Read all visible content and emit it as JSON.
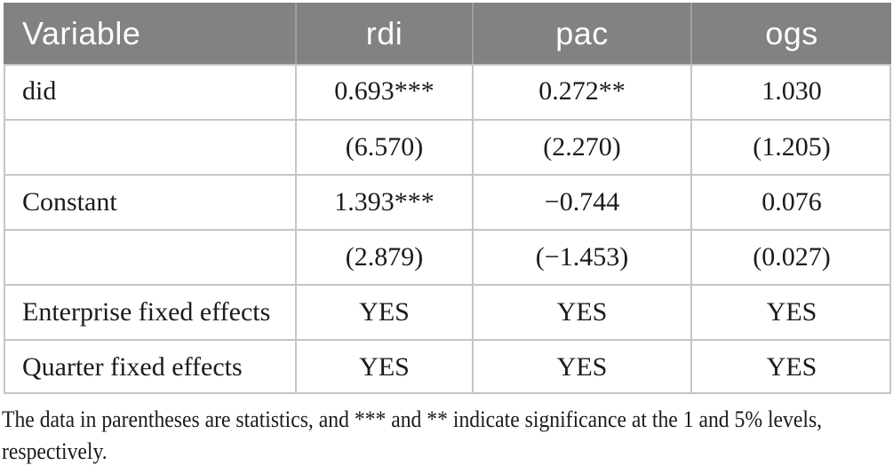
{
  "table": {
    "columns": [
      "Variable",
      "rdi",
      "pac",
      "ogs"
    ],
    "rows": [
      {
        "label": "did",
        "values": [
          "0.693***",
          "0.272**",
          "1.030"
        ]
      },
      {
        "label": "",
        "values": [
          "(6.570)",
          "(2.270)",
          "(1.205)"
        ]
      },
      {
        "label": "Constant",
        "values": [
          "1.393***",
          "−0.744",
          "0.076"
        ]
      },
      {
        "label": "",
        "values": [
          "(2.879)",
          "(−1.453)",
          "(0.027)"
        ]
      },
      {
        "label": "Enterprise fixed effects",
        "values": [
          "YES",
          "YES",
          "YES"
        ]
      },
      {
        "label": "Quarter fixed effects",
        "values": [
          "YES",
          "YES",
          "YES"
        ]
      }
    ]
  },
  "footnote": "The data in parentheses are statistics, and *** and ** indicate significance at the 1 and 5% levels, respectively.",
  "colors": {
    "header_bg": "#828282",
    "header_text": "#fdfdfd",
    "header_divider": "#9e9e9e",
    "body_border": "#c5c5c5",
    "body_text": "#1b1b1b"
  }
}
